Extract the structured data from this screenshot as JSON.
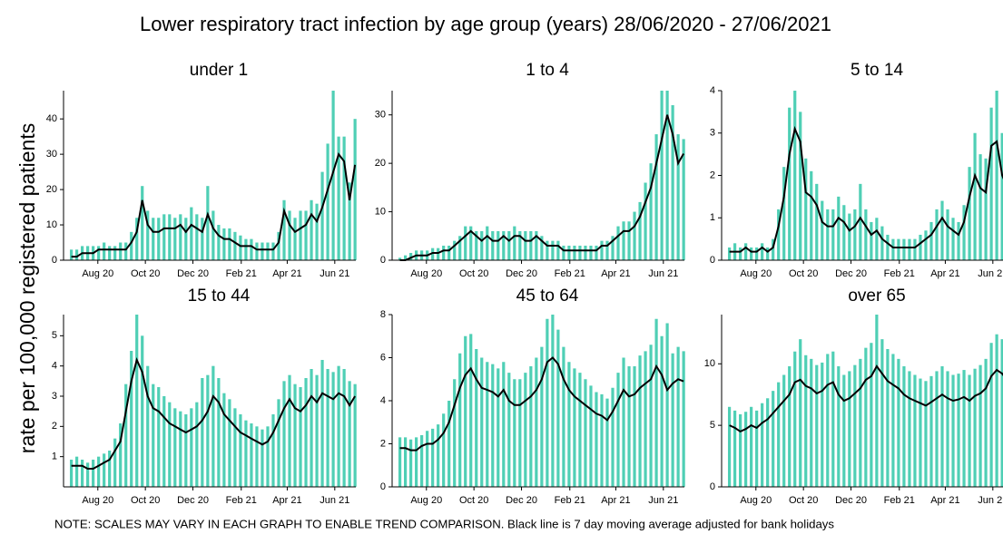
{
  "chart_data": {
    "type": "small-multiples",
    "title": "Lower respiratory tract infection by age group (years) 28/06/2020 - 27/06/2021",
    "ylabel": "rate per 100,000 registered patients",
    "note": "NOTE: SCALES MAY VARY IN EACH GRAPH TO ENABLE TREND COMPARISON. Black line is 7 day moving average adjusted for bank holidays",
    "x": [
      0,
      7,
      14,
      21,
      28,
      35,
      42,
      49,
      56,
      63,
      70,
      77,
      84,
      91,
      98,
      105,
      112,
      119,
      126,
      133,
      140,
      147,
      154,
      161,
      168,
      175,
      182,
      189,
      196,
      203,
      210,
      217,
      224,
      231,
      238,
      245,
      252,
      259,
      266,
      273,
      280,
      287,
      294,
      301,
      308,
      315,
      322,
      329,
      336,
      343,
      350,
      357,
      364
    ],
    "xlim": [
      -10,
      365
    ],
    "xticks": [
      {
        "value": 34,
        "label": "Aug 20"
      },
      {
        "value": 95,
        "label": "Oct 20"
      },
      {
        "value": 156,
        "label": "Dec 20"
      },
      {
        "value": 218,
        "label": "Feb 21"
      },
      {
        "value": 277,
        "label": "Apr 21"
      },
      {
        "value": 338,
        "label": "Jun 21"
      }
    ],
    "panels": [
      {
        "title": "under 1",
        "ylim": [
          0,
          48
        ],
        "yticks": [
          0,
          10,
          20,
          30,
          40
        ],
        "series": [
          {
            "type": "bar",
            "color": "#4fcfb5",
            "values": [
              3,
              3,
              4,
              4,
              4,
              4,
              5,
              4,
              4,
              5,
              5,
              8,
              12,
              21,
              14,
              12,
              12,
              13,
              13,
              12,
              13,
              12,
              15,
              13,
              12,
              21,
              14,
              10,
              9,
              9,
              8,
              7,
              6,
              6,
              5,
              5,
              5,
              5,
              8,
              17,
              14,
              12,
              14,
              14,
              17,
              16,
              25,
              33,
              48,
              35,
              35,
              22,
              40
            ]
          },
          {
            "type": "line",
            "color": "#000000",
            "values": [
              1,
              1,
              2,
              2,
              2,
              3,
              3,
              3,
              3,
              3,
              3,
              5,
              8,
              17,
              10,
              8,
              8,
              9,
              9,
              9,
              10,
              8,
              10,
              9,
              8,
              13,
              9,
              7,
              6,
              6,
              5,
              4,
              4,
              4,
              3,
              3,
              3,
              3,
              5,
              14,
              10,
              8,
              9,
              10,
              13,
              11,
              15,
              20,
              25,
              30,
              28,
              17,
              27
            ]
          }
        ]
      },
      {
        "title": "1 to 4",
        "ylim": [
          0,
          35
        ],
        "yticks": [
          0,
          10,
          20,
          30
        ],
        "series": [
          {
            "type": "bar",
            "color": "#4fcfb5",
            "values": [
              0.5,
              1,
              1.5,
              2,
              2,
              2,
              2.5,
              2.5,
              3,
              3,
              4,
              5,
              7,
              7,
              6,
              6,
              7,
              6,
              6,
              6,
              6,
              7,
              6,
              6,
              6,
              6,
              5,
              4,
              4,
              4,
              3,
              3,
              3,
              3,
              3,
              3,
              3,
              4,
              4,
              5,
              7,
              8,
              8,
              10,
              12,
              16,
              20,
              26,
              35,
              35,
              32,
              26,
              25
            ]
          },
          {
            "type": "line",
            "color": "#000000",
            "values": [
              0,
              0,
              0.5,
              1,
              1,
              1,
              1.5,
              1.5,
              2,
              2,
              3,
              4,
              5,
              6,
              5,
              4,
              5,
              4,
              4,
              5,
              4,
              5,
              5,
              4,
              4,
              5,
              4,
              3,
              3,
              3,
              2,
              2,
              2,
              2,
              2,
              2,
              2,
              3,
              3,
              4,
              5,
              6,
              6,
              7,
              9,
              12,
              15,
              20,
              25,
              30,
              26,
              20,
              22
            ]
          }
        ]
      },
      {
        "title": "5 to 14",
        "ylim": [
          0,
          4
        ],
        "yticks": [
          0,
          1,
          2,
          3,
          4
        ],
        "series": [
          {
            "type": "bar",
            "color": "#4fcfb5",
            "values": [
              0.3,
              0.4,
              0.3,
              0.4,
              0.3,
              0.3,
              0.4,
              0.3,
              0.5,
              1.2,
              2.2,
              3.6,
              4.0,
              3.5,
              2.4,
              2.1,
              1.8,
              1.4,
              1.2,
              1.2,
              1.5,
              1.3,
              1.1,
              1.2,
              1.8,
              1.2,
              0.9,
              1.0,
              0.8,
              0.6,
              0.5,
              0.5,
              0.5,
              0.5,
              0.5,
              0.6,
              0.7,
              0.9,
              1.2,
              1.4,
              1.2,
              1.0,
              0.9,
              1.3,
              2.2,
              3.0,
              2.5,
              2.4,
              3.6,
              4.0,
              3.0,
              2.6,
              2.6
            ]
          },
          {
            "type": "line",
            "color": "#000000",
            "values": [
              0.2,
              0.2,
              0.2,
              0.3,
              0.2,
              0.2,
              0.3,
              0.2,
              0.3,
              0.8,
              1.5,
              2.5,
              3.1,
              2.8,
              1.6,
              1.5,
              1.3,
              0.9,
              0.8,
              0.8,
              1.0,
              0.9,
              0.7,
              0.8,
              1.0,
              0.8,
              0.6,
              0.7,
              0.5,
              0.4,
              0.3,
              0.3,
              0.3,
              0.3,
              0.3,
              0.4,
              0.5,
              0.6,
              0.8,
              1.0,
              0.8,
              0.7,
              0.6,
              0.9,
              1.5,
              2.0,
              1.7,
              1.6,
              2.7,
              2.8,
              2.0,
              1.7,
              1.8
            ]
          }
        ]
      },
      {
        "title": "15 to 44",
        "ylim": [
          0,
          5.7
        ],
        "yticks": [
          1,
          2,
          3,
          4,
          5
        ],
        "series": [
          {
            "type": "bar",
            "color": "#4fcfb5",
            "values": [
              0.9,
              1.0,
              0.9,
              0.8,
              0.9,
              1.0,
              1.1,
              1.2,
              1.6,
              2.1,
              3.4,
              4.5,
              5.7,
              5.0,
              4.0,
              3.4,
              3.3,
              3.0,
              2.8,
              2.6,
              2.5,
              2.4,
              2.6,
              2.8,
              3.6,
              3.7,
              4.0,
              3.6,
              3.1,
              2.9,
              2.6,
              2.4,
              2.2,
              2.1,
              2.0,
              1.9,
              2.0,
              2.4,
              2.9,
              3.5,
              3.7,
              3.4,
              3.3,
              3.6,
              3.9,
              3.7,
              4.2,
              3.9,
              3.8,
              4.0,
              3.9,
              3.5,
              3.4
            ]
          },
          {
            "type": "line",
            "color": "#000000",
            "values": [
              0.7,
              0.7,
              0.7,
              0.6,
              0.6,
              0.7,
              0.8,
              0.9,
              1.2,
              1.5,
              2.5,
              3.5,
              4.2,
              3.8,
              3.0,
              2.6,
              2.5,
              2.3,
              2.1,
              2.0,
              1.9,
              1.8,
              1.9,
              2.0,
              2.2,
              2.5,
              3.0,
              2.8,
              2.4,
              2.2,
              2.0,
              1.8,
              1.7,
              1.6,
              1.5,
              1.4,
              1.5,
              1.8,
              2.2,
              2.6,
              2.9,
              2.6,
              2.5,
              2.7,
              3.0,
              2.8,
              3.1,
              3.0,
              2.9,
              3.1,
              3.0,
              2.7,
              3.0
            ]
          }
        ]
      },
      {
        "title": "45 to 64",
        "ylim": [
          0,
          8
        ],
        "yticks": [
          0,
          2,
          4,
          6,
          8
        ],
        "series": [
          {
            "type": "bar",
            "color": "#4fcfb5",
            "values": [
              2.3,
              2.3,
              2.2,
              2.3,
              2.4,
              2.6,
              2.7,
              2.9,
              3.4,
              4.0,
              5.0,
              6.2,
              7.0,
              7.1,
              6.4,
              6.0,
              5.8,
              5.7,
              5.5,
              5.8,
              5.3,
              5.0,
              5.0,
              5.3,
              5.6,
              6.0,
              6.5,
              7.8,
              8.0,
              7.3,
              6.5,
              5.8,
              5.5,
              5.3,
              5.0,
              4.7,
              4.4,
              4.3,
              4.1,
              4.6,
              5.3,
              6.0,
              5.6,
              5.6,
              6.1,
              6.3,
              6.6,
              7.8,
              7.0,
              7.6,
              6.2,
              6.5,
              6.3
            ]
          },
          {
            "type": "line",
            "color": "#000000",
            "values": [
              1.8,
              1.8,
              1.7,
              1.7,
              1.9,
              2.0,
              2.0,
              2.2,
              2.5,
              3.0,
              3.8,
              4.6,
              5.2,
              5.5,
              5.0,
              4.6,
              4.5,
              4.4,
              4.2,
              4.5,
              4.0,
              3.8,
              3.8,
              4.0,
              4.2,
              4.5,
              5.0,
              5.8,
              6.0,
              5.7,
              5.0,
              4.5,
              4.2,
              4.0,
              3.8,
              3.6,
              3.4,
              3.3,
              3.1,
              3.5,
              4.0,
              4.5,
              4.2,
              4.3,
              4.6,
              4.8,
              5.0,
              5.6,
              5.2,
              4.5,
              4.8,
              5.0,
              4.9
            ]
          }
        ]
      },
      {
        "title": "over 65",
        "ylim": [
          0,
          14
        ],
        "yticks": [
          0,
          5,
          10
        ],
        "series": [
          {
            "type": "bar",
            "color": "#4fcfb5",
            "values": [
              6.5,
              6.2,
              5.9,
              6.1,
              6.5,
              6.2,
              6.8,
              7.2,
              7.8,
              8.5,
              9.1,
              9.8,
              11.0,
              12.0,
              10.7,
              10.4,
              9.9,
              10.1,
              10.8,
              11.0,
              9.8,
              9.1,
              9.4,
              9.9,
              10.4,
              11.3,
              11.7,
              14.0,
              12.0,
              11.2,
              10.8,
              10.4,
              9.8,
              9.4,
              9.1,
              8.8,
              8.6,
              9.0,
              9.4,
              9.8,
              9.4,
              9.1,
              9.2,
              9.5,
              9.1,
              9.6,
              9.9,
              10.4,
              11.7,
              12.4,
              12.0,
              11.2,
              10.1
            ]
          },
          {
            "type": "line",
            "color": "#000000",
            "values": [
              5.0,
              4.8,
              4.5,
              4.7,
              5.0,
              4.8,
              5.2,
              5.5,
              6.0,
              6.5,
              7.0,
              7.5,
              8.5,
              8.7,
              8.2,
              8.0,
              7.6,
              7.8,
              8.3,
              8.5,
              7.5,
              7.0,
              7.2,
              7.6,
              8.0,
              8.7,
              9.0,
              9.8,
              9.2,
              8.6,
              8.3,
              8.0,
              7.5,
              7.2,
              7.0,
              6.8,
              6.6,
              6.9,
              7.2,
              7.5,
              7.2,
              7.0,
              7.1,
              7.3,
              7.0,
              7.4,
              7.6,
              8.0,
              9.0,
              9.5,
              9.2,
              8.6,
              7.8
            ]
          }
        ]
      }
    ]
  }
}
